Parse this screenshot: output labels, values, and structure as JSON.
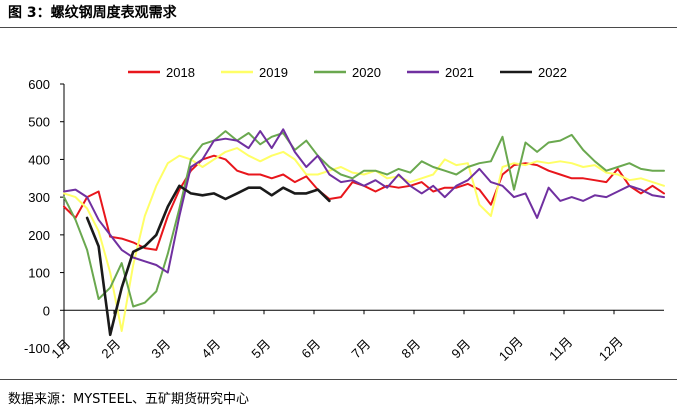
{
  "figure": {
    "title": "图 3：螺纹钢周度表观需求",
    "source": "数据来源：MYSTEEL、五矿期货研究中心"
  },
  "chart_data": {
    "type": "line",
    "title": "图 3：螺纹钢周度表观需求",
    "xlabel": "",
    "ylabel": "",
    "ylim": [
      -100,
      600
    ],
    "yticks": [
      -100,
      0,
      100,
      200,
      300,
      400,
      500,
      600
    ],
    "grid": false,
    "legend_position": "top",
    "x_tick_labels": [
      "1月",
      "2月",
      "3月",
      "4月",
      "5月",
      "6月",
      "7月",
      "8月",
      "9月",
      "10月",
      "11月",
      "12月"
    ],
    "x_unit": "week",
    "x_range": [
      1,
      53
    ],
    "series": [
      {
        "name": "2018",
        "color": "#e8161c",
        "x": [
          1,
          2,
          3,
          4,
          5,
          6,
          7,
          8,
          9,
          10,
          11,
          12,
          13,
          14,
          15,
          16,
          17,
          18,
          19,
          20,
          21,
          22,
          23,
          24,
          25,
          26,
          27,
          28,
          29,
          30,
          31,
          32,
          33,
          34,
          35,
          36,
          37,
          38,
          39,
          40,
          41,
          42,
          43,
          44,
          45,
          46,
          47,
          48,
          49,
          50,
          51,
          52,
          53
        ],
        "values": [
          275,
          245,
          300,
          315,
          195,
          190,
          180,
          165,
          160,
          250,
          320,
          370,
          400,
          410,
          400,
          370,
          360,
          360,
          350,
          360,
          340,
          355,
          320,
          295,
          300,
          340,
          330,
          315,
          330,
          325,
          330,
          340,
          315,
          325,
          325,
          335,
          320,
          280,
          360,
          385,
          390,
          385,
          370,
          360,
          350,
          350,
          345,
          340,
          375,
          330,
          310,
          330,
          310
        ]
      },
      {
        "name": "2019",
        "color": "#ffff66",
        "x": [
          1,
          2,
          3,
          4,
          5,
          6,
          7,
          8,
          9,
          10,
          11,
          12,
          13,
          14,
          15,
          16,
          17,
          18,
          19,
          20,
          21,
          22,
          23,
          24,
          25,
          26,
          27,
          28,
          29,
          30,
          31,
          32,
          33,
          34,
          35,
          36,
          37,
          38,
          39,
          40,
          41,
          42,
          43,
          44,
          45,
          46,
          47,
          48,
          49,
          50,
          51,
          52,
          53
        ],
        "values": [
          310,
          300,
          270,
          210,
          100,
          -55,
          120,
          250,
          330,
          390,
          410,
          400,
          380,
          400,
          420,
          430,
          410,
          395,
          410,
          420,
          400,
          360,
          360,
          370,
          380,
          365,
          360,
          370,
          350,
          355,
          340,
          350,
          360,
          400,
          385,
          390,
          280,
          250,
          380,
          390,
          385,
          395,
          390,
          395,
          390,
          380,
          385,
          365,
          360,
          345,
          350,
          340,
          330
        ]
      },
      {
        "name": "2020",
        "color": "#6aa84f",
        "x": [
          1,
          2,
          3,
          4,
          5,
          6,
          7,
          8,
          9,
          10,
          11,
          12,
          13,
          14,
          15,
          16,
          17,
          18,
          19,
          20,
          21,
          22,
          23,
          24,
          25,
          26,
          27,
          28,
          29,
          30,
          31,
          32,
          33,
          34,
          35,
          36,
          37,
          38,
          39,
          40,
          41,
          42,
          43,
          44,
          45,
          46,
          47,
          48,
          49,
          50,
          51,
          52,
          53
        ],
        "values": [
          300,
          240,
          160,
          30,
          60,
          125,
          10,
          20,
          50,
          150,
          270,
          400,
          440,
          450,
          475,
          450,
          470,
          440,
          460,
          470,
          425,
          450,
          410,
          380,
          360,
          350,
          370,
          370,
          360,
          375,
          365,
          395,
          380,
          370,
          360,
          380,
          390,
          395,
          460,
          320,
          445,
          420,
          445,
          450,
          465,
          425,
          395,
          370,
          380,
          390,
          375,
          370,
          370
        ]
      },
      {
        "name": "2021",
        "color": "#7030a0",
        "x": [
          1,
          2,
          3,
          4,
          5,
          6,
          7,
          8,
          9,
          10,
          11,
          12,
          13,
          14,
          15,
          16,
          17,
          18,
          19,
          20,
          21,
          22,
          23,
          24,
          25,
          26,
          27,
          28,
          29,
          30,
          31,
          32,
          33,
          34,
          35,
          36,
          37,
          38,
          39,
          40,
          41,
          42,
          43,
          44,
          45,
          46,
          47,
          48,
          49,
          50,
          51,
          52,
          53
        ],
        "values": [
          315,
          320,
          300,
          240,
          200,
          160,
          140,
          130,
          120,
          100,
          250,
          380,
          400,
          450,
          455,
          450,
          430,
          475,
          430,
          480,
          420,
          380,
          410,
          360,
          340,
          345,
          330,
          345,
          325,
          360,
          330,
          310,
          330,
          300,
          330,
          345,
          375,
          340,
          330,
          300,
          310,
          245,
          325,
          290,
          300,
          290,
          305,
          300,
          315,
          330,
          320,
          305,
          300
        ]
      },
      {
        "name": "2022",
        "color": "#1a1a1a",
        "x": [
          3,
          4,
          5,
          6,
          7,
          8,
          9,
          10,
          11,
          12,
          13,
          14,
          15,
          16,
          17,
          18,
          19,
          20,
          21,
          22,
          23,
          24
        ],
        "values": [
          245,
          170,
          -65,
          60,
          155,
          170,
          200,
          275,
          330,
          310,
          305,
          310,
          295,
          310,
          325,
          325,
          305,
          325,
          310,
          310,
          320,
          290
        ]
      }
    ]
  }
}
